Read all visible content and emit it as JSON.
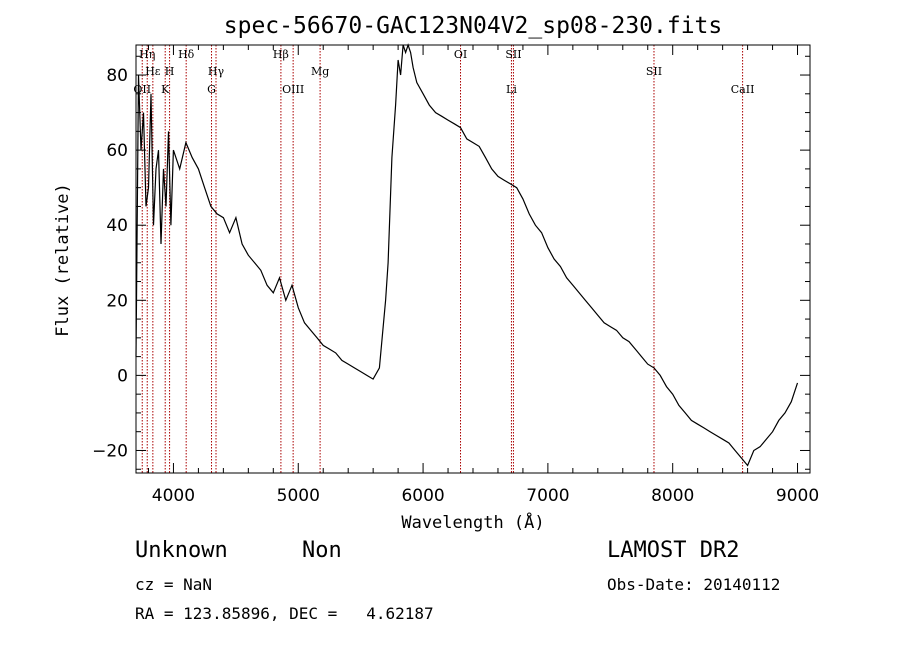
{
  "chart_data": {
    "type": "line",
    "title": "spec-56670-GAC123N04V2_sp08-230.fits",
    "xlabel": "Wavelength (Å)",
    "ylabel": "Flux (relative)",
    "xlim": [
      3700,
      9100
    ],
    "ylim": [
      -26,
      88
    ],
    "xticks": [
      4000,
      5000,
      6000,
      7000,
      8000,
      9000
    ],
    "yticks": [
      -20,
      0,
      20,
      40,
      60,
      80
    ],
    "series": [
      {
        "x": [
          3700,
          3720,
          3740,
          3760,
          3780,
          3800,
          3820,
          3840,
          3860,
          3880,
          3900,
          3920,
          3940,
          3960,
          3980,
          4000,
          4050,
          4100,
          4150,
          4200,
          4250,
          4300,
          4350,
          4400,
          4450,
          4500,
          4550,
          4600,
          4650,
          4700,
          4750,
          4800,
          4850,
          4900,
          4950,
          5000,
          5050,
          5100,
          5150,
          5200,
          5250,
          5300,
          5350,
          5400,
          5450,
          5500,
          5550,
          5600,
          5650,
          5700,
          5720,
          5750,
          5780,
          5800,
          5820,
          5840,
          5860,
          5880,
          5900,
          5920,
          5950,
          6000,
          6050,
          6100,
          6150,
          6200,
          6250,
          6300,
          6350,
          6400,
          6450,
          6500,
          6550,
          6600,
          6650,
          6700,
          6750,
          6800,
          6850,
          6900,
          6950,
          7000,
          7050,
          7100,
          7150,
          7200,
          7250,
          7300,
          7350,
          7400,
          7450,
          7500,
          7550,
          7600,
          7650,
          7700,
          7750,
          7800,
          7850,
          7900,
          7950,
          8000,
          8050,
          8100,
          8150,
          8200,
          8250,
          8300,
          8350,
          8400,
          8450,
          8500,
          8550,
          8600,
          8650,
          8700,
          8750,
          8800,
          8850,
          8900,
          8950,
          9000
        ],
        "y": [
          5,
          80,
          60,
          70,
          45,
          50,
          75,
          40,
          55,
          60,
          35,
          55,
          45,
          65,
          40,
          60,
          55,
          62,
          58,
          55,
          50,
          45,
          43,
          42,
          38,
          42,
          35,
          32,
          30,
          28,
          24,
          22,
          26,
          20,
          24,
          18,
          14,
          12,
          10,
          8,
          7,
          6,
          4,
          3,
          2,
          1,
          0,
          -1,
          2,
          20,
          30,
          58,
          72,
          84,
          80,
          90,
          86,
          92,
          86,
          82,
          78,
          75,
          72,
          70,
          69,
          68,
          67,
          66,
          63,
          62,
          61,
          58,
          55,
          53,
          52,
          51,
          50,
          47,
          43,
          40,
          38,
          34,
          31,
          29,
          26,
          24,
          22,
          20,
          18,
          16,
          14,
          13,
          12,
          10,
          9,
          7,
          5,
          3,
          2,
          0,
          -3,
          -5,
          -8,
          -10,
          -12,
          -13,
          -14,
          -15,
          -16,
          -17,
          -18,
          -20,
          -22,
          -24,
          -20,
          -19,
          -17,
          -15,
          -12,
          -10,
          -7,
          -2
        ]
      }
    ],
    "lines": [
      {
        "x": 3750,
        "labels": [
          "OII"
        ]
      },
      {
        "x": 3790,
        "labels": [
          "Hη"
        ]
      },
      {
        "x": 3835,
        "labels": [
          "Hε"
        ]
      },
      {
        "x": 3934,
        "labels": [
          "K"
        ]
      },
      {
        "x": 3969,
        "labels": [
          "H"
        ]
      },
      {
        "x": 4102,
        "labels": [
          "Hδ"
        ]
      },
      {
        "x": 4305,
        "labels": [
          "G"
        ]
      },
      {
        "x": 4341,
        "labels": [
          "Hγ"
        ]
      },
      {
        "x": 4861,
        "labels": [
          "Hβ"
        ]
      },
      {
        "x": 4959,
        "labels": [
          "OIII"
        ]
      },
      {
        "x": 5175,
        "labels": [
          "Mg"
        ]
      },
      {
        "x": 6300,
        "labels": [
          "OI"
        ]
      },
      {
        "x": 6708,
        "labels": [
          "Li"
        ]
      },
      {
        "x": 6724,
        "labels": [
          "SII"
        ]
      },
      {
        "x": 7850,
        "labels": [
          "SII"
        ]
      },
      {
        "x": 8560,
        "labels": [
          "CaII"
        ]
      }
    ]
  },
  "info": {
    "class_label": "Unknown",
    "subclass_label": "Non",
    "survey": "LAMOST DR2",
    "cz": "cz = NaN",
    "obs_date": "Obs-Date: 20140112",
    "coords": "RA = 123.85896, DEC =   4.62187"
  },
  "colors": {
    "spectrum": "#000000",
    "marker": "#aa0000"
  }
}
